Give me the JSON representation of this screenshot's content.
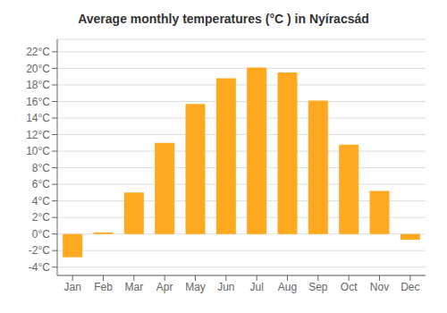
{
  "chart_data": {
    "type": "bar",
    "title": "Average monthly temperatures (°C ) in Nyíracsád",
    "categories": [
      "Jan",
      "Feb",
      "Mar",
      "Apr",
      "May",
      "Jun",
      "Jul",
      "Aug",
      "Sep",
      "Oct",
      "Nov",
      "Dec"
    ],
    "values": [
      -2.8,
      0.2,
      5.0,
      11.0,
      15.7,
      18.8,
      20.1,
      19.5,
      16.1,
      10.8,
      5.2,
      -0.7
    ],
    "color": "#FFA920",
    "ylim": [
      -5,
      23.5
    ],
    "yticks": [
      {
        "value": -4,
        "label": "-4°C"
      },
      {
        "value": -2,
        "label": "-2°C"
      },
      {
        "value": 0,
        "label": "0°C"
      },
      {
        "value": 2,
        "label": "2°C"
      },
      {
        "value": 4,
        "label": "4°C"
      },
      {
        "value": 6,
        "label": "6°C"
      },
      {
        "value": 8,
        "label": "8°C"
      },
      {
        "value": 10,
        "label": "10°C"
      },
      {
        "value": 12,
        "label": "12°C"
      },
      {
        "value": 14,
        "label": "14°C"
      },
      {
        "value": 16,
        "label": "16°C"
      },
      {
        "value": 18,
        "label": "18°C"
      },
      {
        "value": 20,
        "label": "20°C"
      },
      {
        "value": 22,
        "label": "22°C"
      }
    ],
    "grid": true
  }
}
